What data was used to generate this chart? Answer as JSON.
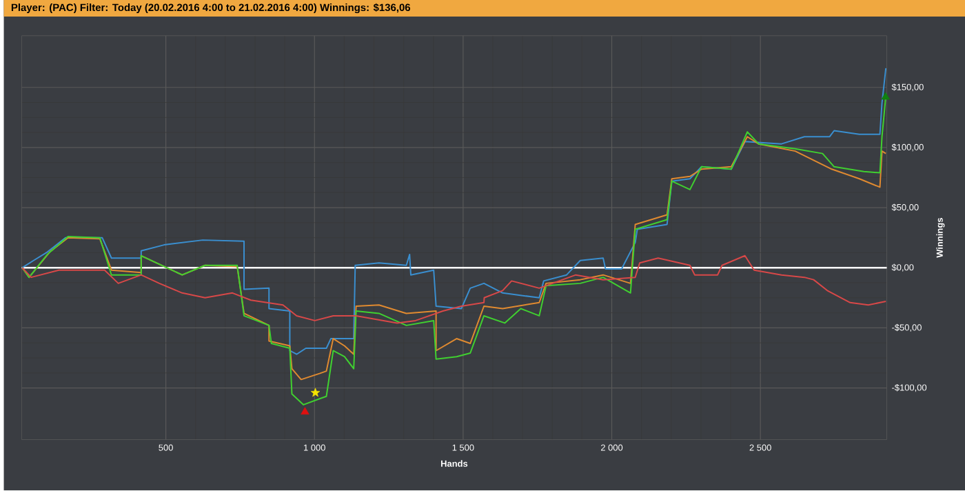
{
  "chart_data": {
    "type": "line",
    "title": "Player: (PAC) Filter: Today (20.02.2016 4:00 to 21.02.2016 4:00) Winnings: $136,06",
    "xlabel": "Hands",
    "ylabel": "Winnings",
    "xlim": [
      15,
      2925
    ],
    "ylim": [
      -143,
      193
    ],
    "xticks": [
      {
        "value": 500,
        "label": "500"
      },
      {
        "value": 1000,
        "label": "1 000"
      },
      {
        "value": 1500,
        "label": "1 500"
      },
      {
        "value": 2000,
        "label": "2 000"
      },
      {
        "value": 2500,
        "label": "2 500"
      }
    ],
    "yticks": [
      {
        "value": -100,
        "label": "-$100,00"
      },
      {
        "value": -50,
        "label": "-$50,00"
      },
      {
        "value": 0,
        "label": "$0,00"
      },
      {
        "value": 50,
        "label": "$50,00"
      },
      {
        "value": 100,
        "label": "$100,00"
      },
      {
        "value": 150,
        "label": "$150,00"
      }
    ],
    "grid": true,
    "ref_lines": [
      {
        "axis": "y",
        "value": 0,
        "color": "#ffffff"
      }
    ],
    "series": [
      {
        "color": "#3a8fd0",
        "x": [
          17,
          55,
          101,
          163,
          286,
          317,
          417,
          417,
          494,
          624,
          763,
          763,
          847,
          847,
          917,
          917,
          940,
          971,
          1040,
          1055,
          1132,
          1137,
          1217,
          1309,
          1320,
          1324,
          1401,
          1409,
          1494,
          1524,
          1570,
          1633,
          1756,
          1771,
          1848,
          1894,
          1971,
          1979,
          2033,
          2079,
          2086,
          2186,
          2202,
          2263,
          2302,
          2402,
          2448,
          2571,
          2648,
          2733,
          2748,
          2833,
          2902,
          2909,
          2922
        ],
        "values": [
          0,
          6,
          13,
          25,
          25,
          8,
          8,
          14,
          19,
          23,
          22,
          -18,
          -17,
          -34,
          -36,
          -69,
          -72,
          -67,
          -67,
          -59,
          -59,
          2,
          4,
          2,
          11,
          -6,
          -2,
          -32,
          -34,
          -17,
          -13,
          -21,
          -25,
          -11,
          -6,
          6,
          8,
          -1,
          -1,
          21,
          32,
          36,
          72,
          74,
          84,
          82,
          105,
          103,
          109,
          109,
          114,
          111,
          111,
          137,
          166
        ]
      },
      {
        "color": "#e08a30",
        "x": [
          17,
          40,
          109,
          171,
          278,
          317,
          417,
          417,
          555,
          632,
          740,
          763,
          847,
          847,
          917,
          924,
          955,
          1017,
          1040,
          1063,
          1101,
          1132,
          1140,
          1217,
          1309,
          1409,
          1409,
          1478,
          1524,
          1570,
          1633,
          1756,
          1779,
          1894,
          1971,
          2063,
          2079,
          2186,
          2202,
          2263,
          2302,
          2402,
          2456,
          2494,
          2617,
          2740,
          2833,
          2902,
          2909,
          2922
        ],
        "values": [
          0,
          -8,
          13,
          25,
          24,
          -2,
          -4,
          10,
          -6,
          2,
          1,
          -38,
          -48,
          -61,
          -65,
          -84,
          -93,
          -88,
          -86,
          -59,
          -65,
          -72,
          -32,
          -31,
          -38,
          -36,
          -69,
          -59,
          -63,
          -32,
          -34,
          -29,
          -13,
          -10,
          -6,
          -13,
          36,
          44,
          74,
          76,
          82,
          84,
          109,
          103,
          97,
          82,
          74,
          67,
          97,
          95
        ]
      },
      {
        "color": "#40d030",
        "x": [
          17,
          40,
          101,
          171,
          278,
          317,
          417,
          417,
          555,
          632,
          740,
          763,
          847,
          855,
          917,
          924,
          963,
          1017,
          1040,
          1063,
          1101,
          1132,
          1140,
          1217,
          1309,
          1401,
          1409,
          1478,
          1524,
          1570,
          1640,
          1694,
          1756,
          1779,
          1894,
          1971,
          2063,
          2079,
          2186,
          2202,
          2263,
          2302,
          2402,
          2456,
          2494,
          2617,
          2709,
          2748,
          2848,
          2902,
          2909,
          2922
        ],
        "values": [
          0,
          -8,
          11,
          26,
          25,
          -6,
          -6,
          10,
          -6,
          2,
          2,
          -40,
          -48,
          -63,
          -67,
          -105,
          -114,
          -109,
          -107,
          -69,
          -74,
          -84,
          -36,
          -38,
          -48,
          -44,
          -76,
          -74,
          -71,
          -40,
          -46,
          -34,
          -40,
          -15,
          -13,
          -8,
          -21,
          32,
          40,
          72,
          65,
          84,
          82,
          113,
          103,
          99,
          95,
          84,
          80,
          79,
          109,
          143
        ]
      },
      {
        "color": "#d84848",
        "x": [
          17,
          47,
          140,
          294,
          340,
          417,
          478,
          555,
          632,
          724,
          786,
          894,
          940,
          1001,
          1063,
          1140,
          1278,
          1340,
          1432,
          1494,
          1570,
          1571,
          1633,
          1663,
          1756,
          1879,
          1971,
          2079,
          2094,
          2156,
          2263,
          2279,
          2356,
          2371,
          2448,
          2479,
          2571,
          2648,
          2679,
          2725,
          2802,
          2863,
          2922
        ],
        "values": [
          0,
          -8,
          -2,
          -2,
          -13,
          -6,
          -13,
          -21,
          -25,
          -21,
          -27,
          -31,
          -40,
          -44,
          -40,
          -40,
          -46,
          -44,
          -36,
          -32,
          -29,
          -25,
          -19,
          -11,
          -17,
          -6,
          -10,
          -8,
          4,
          8,
          2,
          -6,
          -6,
          2,
          10,
          -2,
          -6,
          -8,
          -10,
          -19,
          -29,
          -31,
          -28
        ]
      },
      {
        "type": "scatter",
        "marker": "star",
        "color": "#f5e400",
        "x": [
          1003
        ],
        "values": [
          -104
        ]
      },
      {
        "type": "scatter",
        "marker": "triangle",
        "color": "#e01010",
        "x": [
          968
        ],
        "values": [
          -120
        ]
      },
      {
        "type": "scatter",
        "marker": "triangle",
        "color": "#108010",
        "x": [
          2921
        ],
        "values": [
          142
        ]
      }
    ]
  }
}
